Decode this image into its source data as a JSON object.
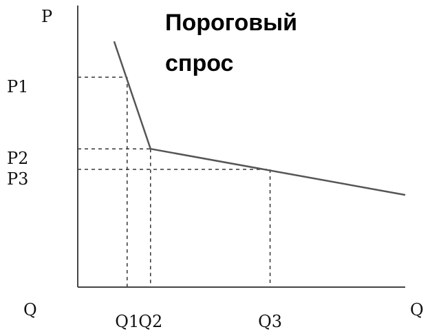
{
  "chart_data": {
    "type": "line",
    "title_lines": [
      "Пороговый",
      "спрос"
    ],
    "ylabel": "P",
    "xlabel": "Q",
    "x_origin_label": "Q",
    "x_ticks": [
      {
        "label": "Q1",
        "value": 0.95
      },
      {
        "label": "Q2",
        "value": 1.4
      },
      {
        "label": "Q3",
        "value": 3.7
      }
    ],
    "y_ticks": [
      {
        "label": "P1",
        "value": 4.1
      },
      {
        "label": "P2",
        "value": 2.7
      },
      {
        "label": "P3",
        "value": 2.3
      }
    ],
    "series": [
      {
        "points": [
          {
            "x": 0.7,
            "y": 4.8
          },
          {
            "x": 1.4,
            "y": 2.7
          },
          {
            "x": 6.3,
            "y": 1.8
          }
        ],
        "color": "#555555"
      }
    ],
    "guides": [
      {
        "x": 0.95,
        "y": 4.1
      },
      {
        "x": 1.4,
        "y": 2.7
      },
      {
        "x": 3.7,
        "y": 2.3
      }
    ],
    "xlim": [
      0,
      6.3
    ],
    "ylim": [
      0,
      5.5
    ],
    "grid": false,
    "legend": "none"
  }
}
